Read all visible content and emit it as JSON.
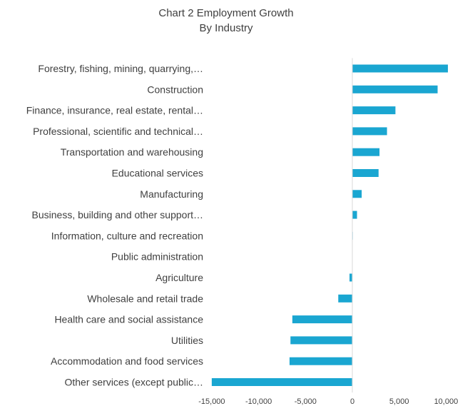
{
  "chart_data": {
    "type": "bar",
    "orientation": "horizontal",
    "title": "Chart 2 Employment Growth",
    "subtitle": "By Industry",
    "xlabel": "",
    "ylabel": "",
    "xlim": [
      -15000,
      10000
    ],
    "xticks": [
      -15000,
      -10000,
      -5000,
      0,
      5000,
      10000
    ],
    "xtick_labels": [
      "-15,000",
      "-10,000",
      "-5,000",
      "0",
      "5,000",
      "10,000"
    ],
    "grid": false,
    "legend": "none",
    "bar_color": "#1aa6d1",
    "axis_color": "#d9d9d9",
    "categories": [
      "Forestry, fishing, mining, quarrying,…",
      "Construction",
      "Finance, insurance, real estate, rental…",
      "Professional, scientific and technical…",
      "Transportation and warehousing",
      "Educational services",
      "Manufacturing",
      "Business, building and other support…",
      "Information, culture and recreation",
      "Public administration",
      "Agriculture",
      "Wholesale and retail trade",
      "Health care and social assistance",
      "Utilities",
      "Accommodation and food services",
      "Other services (except public…"
    ],
    "values": [
      10200,
      9100,
      4600,
      3700,
      2900,
      2800,
      1000,
      500,
      50,
      0,
      -300,
      -1500,
      -6400,
      -6600,
      -6700,
      -15000
    ]
  }
}
